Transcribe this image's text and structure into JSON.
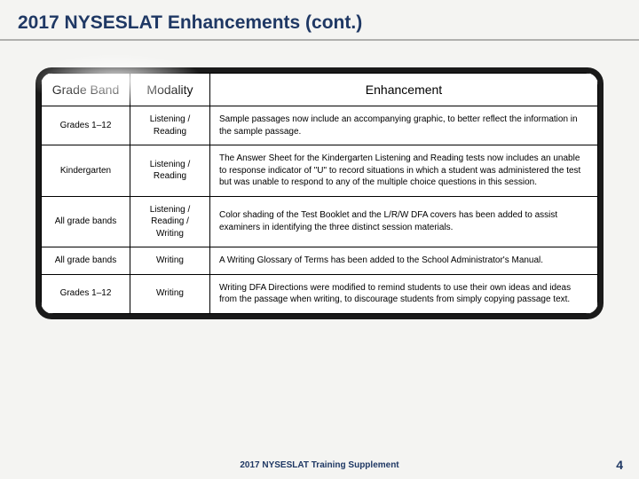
{
  "title": "2017 NYSESLAT Enhancements (cont.)",
  "columns": {
    "c0": "Grade Band",
    "c1": "Modality",
    "c2": "Enhancement"
  },
  "rows": [
    {
      "band": "Grades 1–12",
      "mod": "Listening / Reading",
      "enh": "Sample passages now include an accompanying graphic, to better reflect the information in the sample passage."
    },
    {
      "band": "Kindergarten",
      "mod": "Listening / Reading",
      "enh": "The Answer Sheet for the Kindergarten Listening and Reading tests now includes an unable to response indicator of \"U\" to record situations in which a student was administered the test but was unable to respond to any of the multiple choice questions in this session."
    },
    {
      "band": "All grade bands",
      "mod": "Listening / Reading / Writing",
      "enh": "Color shading of the Test Booklet and the L/R/W DFA covers has been added to assist examiners in identifying the three distinct session materials."
    },
    {
      "band": "All grade bands",
      "mod": "Writing",
      "enh": "A Writing Glossary of Terms has been added to the School Administrator's Manual."
    },
    {
      "band": "Grades 1–12",
      "mod": "Writing",
      "enh": "Writing DFA Directions were modified to remind students to use their own ideas and ideas from the passage when writing, to discourage students from simply copying passage text."
    }
  ],
  "footer": "2017 NYSESLAT Training Supplement",
  "page": "4",
  "colors": {
    "title": "#1f3864",
    "bg": "#f4f4f2",
    "table_border": "#000000",
    "table_outer": "#1a1a1a"
  }
}
